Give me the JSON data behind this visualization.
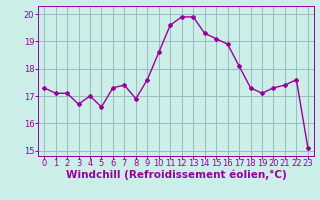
{
  "x": [
    0,
    1,
    2,
    3,
    4,
    5,
    6,
    7,
    8,
    9,
    10,
    11,
    12,
    13,
    14,
    15,
    16,
    17,
    18,
    19,
    20,
    21,
    22,
    23
  ],
  "y": [
    17.3,
    17.1,
    17.1,
    16.7,
    17.0,
    16.6,
    17.3,
    17.4,
    16.9,
    17.6,
    18.6,
    19.6,
    19.9,
    19.9,
    19.3,
    19.1,
    18.9,
    18.1,
    17.3,
    17.1,
    17.3,
    17.4,
    17.6,
    15.1
  ],
  "line_color": "#990099",
  "marker": "D",
  "marker_size": 2,
  "bg_color": "#cceee8",
  "grid_color": "#99bbbb",
  "xlabel": "Windchill (Refroidissement éolien,°C)",
  "xlabel_color": "#990099",
  "ylim": [
    14.8,
    20.3
  ],
  "yticks": [
    15,
    16,
    17,
    18,
    19,
    20
  ],
  "xticks": [
    0,
    1,
    2,
    3,
    4,
    5,
    6,
    7,
    8,
    9,
    10,
    11,
    12,
    13,
    14,
    15,
    16,
    17,
    18,
    19,
    20,
    21,
    22,
    23
  ],
  "tick_label_color": "#990099",
  "tick_label_size": 6,
  "xlabel_size": 7.5,
  "line_width": 1.0
}
